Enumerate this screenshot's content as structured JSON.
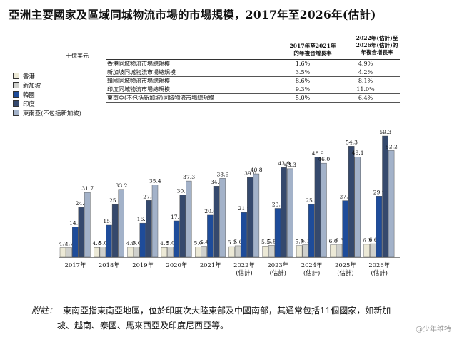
{
  "title": "亞洲主要國家及區域同城物流市場的市場規模，2017年至2026年(估計)",
  "unit_label": "十億美元",
  "cagr_table": {
    "headers": [
      "2017年至2021年\n的年複合增長率",
      "2022年(估計)至\n2026年(估計)的\n年複合增長率"
    ],
    "rows": [
      {
        "label": "香港同城物流市場總規模",
        "v1": "1.6%",
        "v2": "4.9%"
      },
      {
        "label": "新加坡同城物流市場總規模",
        "v1": "3.5%",
        "v2": "4.2%"
      },
      {
        "label": "韓國同城物流市場總規模",
        "v1": "8.6%",
        "v2": "8.1%"
      },
      {
        "label": "印度同城物流市場總規模",
        "v1": "9.3%",
        "v2": "11.0%"
      },
      {
        "label": "東南亞(不包括新加坡)同城物流市場總規模",
        "v1": "5.0%",
        "v2": "6.4%"
      }
    ]
  },
  "chart_data": {
    "type": "bar",
    "categories": [
      "2017年",
      "2018年",
      "2019年",
      "2020年",
      "2021年",
      "2022年\n(估計)",
      "2023年\n(估計)",
      "2024年\n(估計)",
      "2025年\n(估計)",
      "2026年\n(估計)"
    ],
    "series": [
      {
        "name": "香港",
        "color": "#ece9d6",
        "values": [
          4.7,
          4.8,
          4.9,
          4.8,
          5.0,
          5.2,
          5.5,
          5.7,
          6.0,
          6.3
        ]
      },
      {
        "name": "新加坡",
        "color": "#cfd0cc",
        "values": [
          4.7,
          5.0,
          5.0,
          5.0,
          5.4,
          5.6,
          5.8,
          6.1,
          6.3,
          6.6
        ]
      },
      {
        "name": "韓國",
        "color": "#1e4c9a",
        "values": [
          14.8,
          15.7,
          16.7,
          17.8,
          20.6,
          21.9,
          23.9,
          25.8,
          27.7,
          29.9
        ]
      },
      {
        "name": "印度",
        "color": "#35496d",
        "values": [
          24.4,
          25.8,
          27.8,
          30.6,
          34.8,
          39.0,
          43.9,
          48.9,
          54.3,
          59.3
        ]
      },
      {
        "name": "東南亞(不包括新加坡)",
        "color": "#a3b2c9",
        "values": [
          31.7,
          33.2,
          35.4,
          37.3,
          38.6,
          40.8,
          43.3,
          46.0,
          49.1,
          52.2
        ]
      }
    ],
    "ylim": [
      0,
      60
    ]
  },
  "footnote": {
    "lead": "附註：",
    "line1": "東南亞指東南亞地區，位於印度次大陸東部及中國南部，其通常包括11個國家，如新加",
    "line2": "坡、越南、泰國、馬來西亞及印度尼西亞等。"
  },
  "watermark": "@少年维特"
}
